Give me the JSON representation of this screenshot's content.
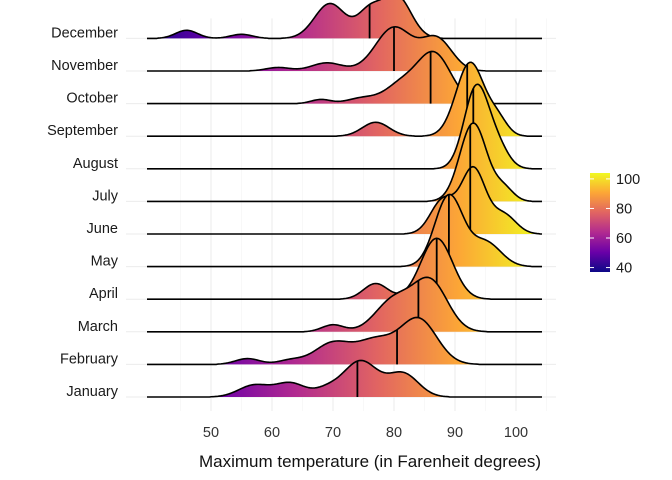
{
  "chart_data": {
    "type": "ridgeline",
    "title": "",
    "xlabel": "Maximum temperature (in Farenheit degrees)",
    "ylabel": "",
    "xlim": [
      40,
      104
    ],
    "x_ticks": [
      50,
      60,
      70,
      80,
      90,
      100
    ],
    "grid": true,
    "color_scale": {
      "name": "plasma",
      "range": [
        37,
        104
      ],
      "ticks": [
        40,
        60,
        80,
        100
      ],
      "stops": [
        "#0d0887",
        "#6a00a8",
        "#b12a90",
        "#e16462",
        "#fca636",
        "#f0f921"
      ]
    },
    "legend_position": "right",
    "months": [
      {
        "name": "January",
        "median": 74,
        "peaks": [
          [
            57,
            0.2,
            2.5
          ],
          [
            63,
            0.24,
            2.5
          ],
          [
            69,
            0.12,
            2.0
          ],
          [
            74.5,
            0.62,
            2.8
          ],
          [
            81.5,
            0.4,
            2.5
          ]
        ]
      },
      {
        "name": "February",
        "median": 80.5,
        "peaks": [
          [
            56,
            0.1,
            2.0
          ],
          [
            63,
            0.07,
            2.0
          ],
          [
            70,
            0.37,
            3.0
          ],
          [
            77,
            0.4,
            3.0
          ],
          [
            84,
            0.78,
            3.0
          ]
        ]
      },
      {
        "name": "March",
        "median": 84,
        "peaks": [
          [
            70,
            0.12,
            1.8
          ],
          [
            80,
            0.55,
            3.0
          ],
          [
            86,
            0.85,
            2.8
          ]
        ]
      },
      {
        "name": "April",
        "median": 87,
        "peaks": [
          [
            77,
            0.27,
            2.0
          ],
          [
            87,
            1.05,
            2.6
          ]
        ]
      },
      {
        "name": "May",
        "median": 89,
        "peaks": [
          [
            89,
            1.22,
            2.3
          ],
          [
            95,
            0.42,
            2.5
          ]
        ]
      },
      {
        "name": "June",
        "median": 92.5,
        "peaks": [
          [
            88,
            0.58,
            2.0
          ],
          [
            93,
            1.12,
            2.0
          ],
          [
            98,
            0.33,
            2.0
          ]
        ]
      },
      {
        "name": "July",
        "median": 92.5,
        "peaks": [
          [
            93,
            1.35,
            2.2
          ],
          [
            98,
            0.22,
            1.6
          ]
        ]
      },
      {
        "name": "August",
        "median": 93,
        "peaks": [
          [
            93.5,
            1.4,
            2.0
          ],
          [
            97,
            0.35,
            1.8
          ]
        ]
      },
      {
        "name": "September",
        "median": 92,
        "peaks": [
          [
            77,
            0.24,
            2.2
          ],
          [
            92.5,
            1.27,
            2.3
          ],
          [
            97,
            0.27,
            1.6
          ]
        ]
      },
      {
        "name": "October",
        "median": 86,
        "peaks": [
          [
            68,
            0.07,
            1.6
          ],
          [
            75,
            0.1,
            2.5
          ],
          [
            81,
            0.3,
            2.5
          ],
          [
            86.5,
            0.87,
            2.8
          ]
        ]
      },
      {
        "name": "November",
        "median": 80,
        "peaks": [
          [
            61,
            0.06,
            2.0
          ],
          [
            69,
            0.14,
            2.5
          ],
          [
            80,
            0.75,
            3.0
          ],
          [
            87,
            0.55,
            2.5
          ]
        ]
      },
      {
        "name": "December",
        "median": 76,
        "peaks": [
          [
            46,
            0.14,
            1.8
          ],
          [
            55,
            0.07,
            1.8
          ],
          [
            69.5,
            0.6,
            2.5
          ],
          [
            76,
            0.46,
            2.0
          ],
          [
            80.5,
            0.72,
            2.3
          ]
        ]
      }
    ]
  }
}
